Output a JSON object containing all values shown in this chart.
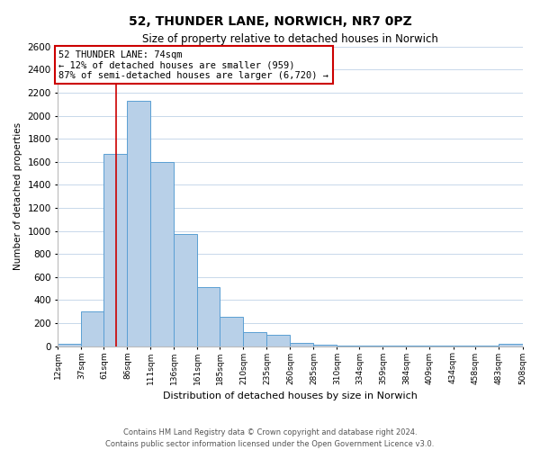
{
  "title": "52, THUNDER LANE, NORWICH, NR7 0PZ",
  "subtitle": "Size of property relative to detached houses in Norwich",
  "xlabel": "Distribution of detached houses by size in Norwich",
  "ylabel": "Number of detached properties",
  "bar_color": "#b8d0e8",
  "bar_edge_color": "#5a9fd4",
  "bin_edges": [
    12,
    37,
    61,
    86,
    111,
    136,
    161,
    185,
    210,
    235,
    260,
    285,
    310,
    334,
    359,
    384,
    409,
    434,
    458,
    483,
    508
  ],
  "bar_heights": [
    25,
    300,
    1670,
    2130,
    1600,
    970,
    510,
    255,
    125,
    100,
    30,
    15,
    5,
    3,
    3,
    2,
    2,
    2,
    2,
    20
  ],
  "tick_labels": [
    "12sqm",
    "37sqm",
    "61sqm",
    "86sqm",
    "111sqm",
    "136sqm",
    "161sqm",
    "185sqm",
    "210sqm",
    "235sqm",
    "260sqm",
    "285sqm",
    "310sqm",
    "334sqm",
    "359sqm",
    "384sqm",
    "409sqm",
    "434sqm",
    "458sqm",
    "483sqm",
    "508sqm"
  ],
  "ylim": [
    0,
    2600
  ],
  "yticks": [
    0,
    200,
    400,
    600,
    800,
    1000,
    1200,
    1400,
    1600,
    1800,
    2000,
    2200,
    2400,
    2600
  ],
  "property_line_x": 74,
  "annotation_title": "52 THUNDER LANE: 74sqm",
  "annotation_line1": "← 12% of detached houses are smaller (959)",
  "annotation_line2": "87% of semi-detached houses are larger (6,720) →",
  "annotation_box_color": "#ffffff",
  "annotation_box_edge": "#cc0000",
  "property_line_color": "#cc0000",
  "footer_line1": "Contains HM Land Registry data © Crown copyright and database right 2024.",
  "footer_line2": "Contains public sector information licensed under the Open Government Licence v3.0.",
  "background_color": "#ffffff",
  "grid_color": "#c8d8ea"
}
